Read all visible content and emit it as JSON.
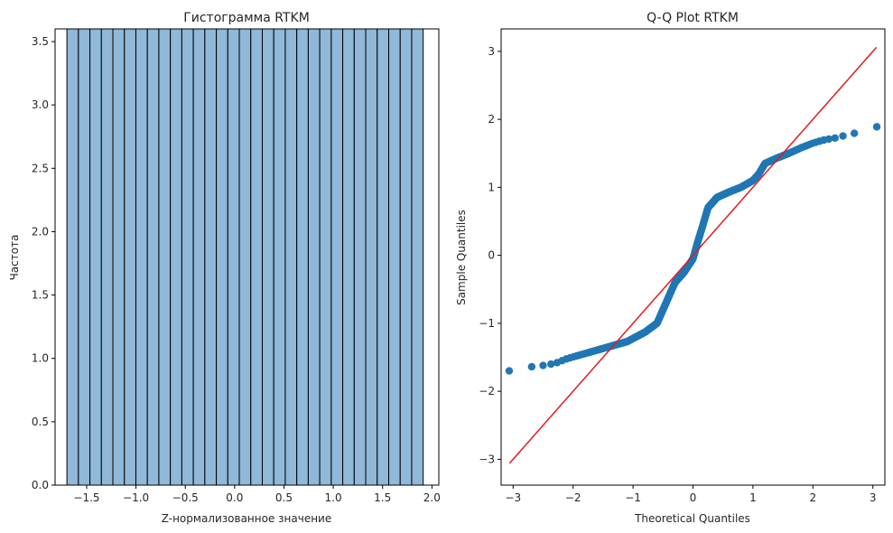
{
  "chart_data": [
    {
      "type": "bar",
      "title": "Гистограмма RTKM",
      "xlabel": "Z-нормализованное значение",
      "ylabel": "Частота",
      "xlim": [
        -1.82,
        2.07
      ],
      "ylim": [
        0,
        3.6
      ],
      "xticks": [
        -1.5,
        -1.0,
        -0.5,
        0.0,
        0.5,
        1.0,
        1.5,
        2.0
      ],
      "xtick_labels": [
        "−1.5",
        "−1.0",
        "−0.5",
        "0.0",
        "0.5",
        "1.0",
        "1.5",
        "2.0"
      ],
      "yticks": [
        0.0,
        0.5,
        1.0,
        1.5,
        2.0,
        2.5,
        3.0,
        3.5
      ],
      "ytick_labels": [
        "0.0",
        "0.5",
        "1.0",
        "1.5",
        "2.0",
        "2.5",
        "3.0",
        "3.5"
      ],
      "bin_edges": [
        -1.7,
        -1.5835,
        -1.467,
        -1.3505,
        -1.234,
        -1.1175,
        -1.001,
        -0.8845,
        -0.768,
        -0.6515,
        -0.535,
        -0.4185,
        -0.302,
        -0.1855,
        -0.069,
        0.0475,
        0.164,
        0.2805,
        0.397,
        0.5135,
        0.63,
        0.7465,
        0.863,
        0.9795,
        1.096,
        1.2125,
        1.329,
        1.4455,
        1.562,
        1.6785,
        1.795,
        1.9115
      ],
      "values_note_clipped": true,
      "values": [
        3.6,
        3.6,
        3.6,
        3.6,
        3.6,
        3.6,
        3.6,
        3.6,
        3.6,
        3.6,
        3.6,
        3.6,
        3.6,
        3.6,
        3.6,
        3.6,
        3.6,
        3.6,
        3.6,
        3.6,
        3.6,
        3.6,
        3.6,
        3.6,
        3.6,
        3.6,
        3.6,
        3.6,
        3.6,
        3.6,
        3.6
      ],
      "bar_color": "#8fb8d9",
      "edge_color": "#000000",
      "grid": false
    },
    {
      "type": "scatter",
      "title": "Q-Q Plot RTKM",
      "xlabel": "Theoretical Quantiles",
      "ylabel": "Sample Quantiles",
      "xlim": [
        -3.2,
        3.2
      ],
      "ylim": [
        -3.38,
        3.33
      ],
      "xticks": [
        -3,
        -2,
        -1,
        0,
        1,
        2,
        3
      ],
      "xtick_labels": [
        "−3",
        "−2",
        "−1",
        "0",
        "1",
        "2",
        "3"
      ],
      "yticks": [
        -3,
        -2,
        -1,
        0,
        1,
        2,
        3
      ],
      "ytick_labels": [
        "−3",
        "−2",
        "−1",
        "0",
        "1",
        "2",
        "3"
      ],
      "reference_line": {
        "x": [
          -3.06,
          3.06
        ],
        "y": [
          -3.06,
          3.06
        ],
        "color": "#e41a1c"
      },
      "curve_points": [
        [
          -3.06,
          -1.7
        ],
        [
          -2.9,
          -1.68
        ],
        [
          -2.7,
          -1.64
        ],
        [
          -2.5,
          -1.62
        ],
        [
          -2.3,
          -1.59
        ],
        [
          -2.1,
          -1.52
        ],
        [
          -1.9,
          -1.47
        ],
        [
          -1.7,
          -1.42
        ],
        [
          -1.5,
          -1.37
        ],
        [
          -1.3,
          -1.32
        ],
        [
          -1.1,
          -1.27
        ],
        [
          -0.95,
          -1.2
        ],
        [
          -0.8,
          -1.13
        ],
        [
          -0.6,
          -1.0
        ],
        [
          -0.45,
          -0.7
        ],
        [
          -0.3,
          -0.4
        ],
        [
          -0.15,
          -0.25
        ],
        [
          0.0,
          -0.05
        ],
        [
          0.08,
          0.2
        ],
        [
          0.15,
          0.4
        ],
        [
          0.25,
          0.7
        ],
        [
          0.4,
          0.85
        ],
        [
          0.6,
          0.93
        ],
        [
          0.8,
          1.0
        ],
        [
          1.0,
          1.1
        ],
        [
          1.1,
          1.2
        ],
        [
          1.2,
          1.35
        ],
        [
          1.4,
          1.43
        ],
        [
          1.6,
          1.5
        ],
        [
          1.8,
          1.58
        ],
        [
          2.0,
          1.65
        ],
        [
          2.2,
          1.7
        ],
        [
          2.4,
          1.73
        ],
        [
          2.6,
          1.78
        ],
        [
          2.85,
          1.82
        ],
        [
          3.06,
          1.89
        ]
      ],
      "point_count": 300,
      "point_color": "#1f77b4",
      "grid": false
    }
  ]
}
